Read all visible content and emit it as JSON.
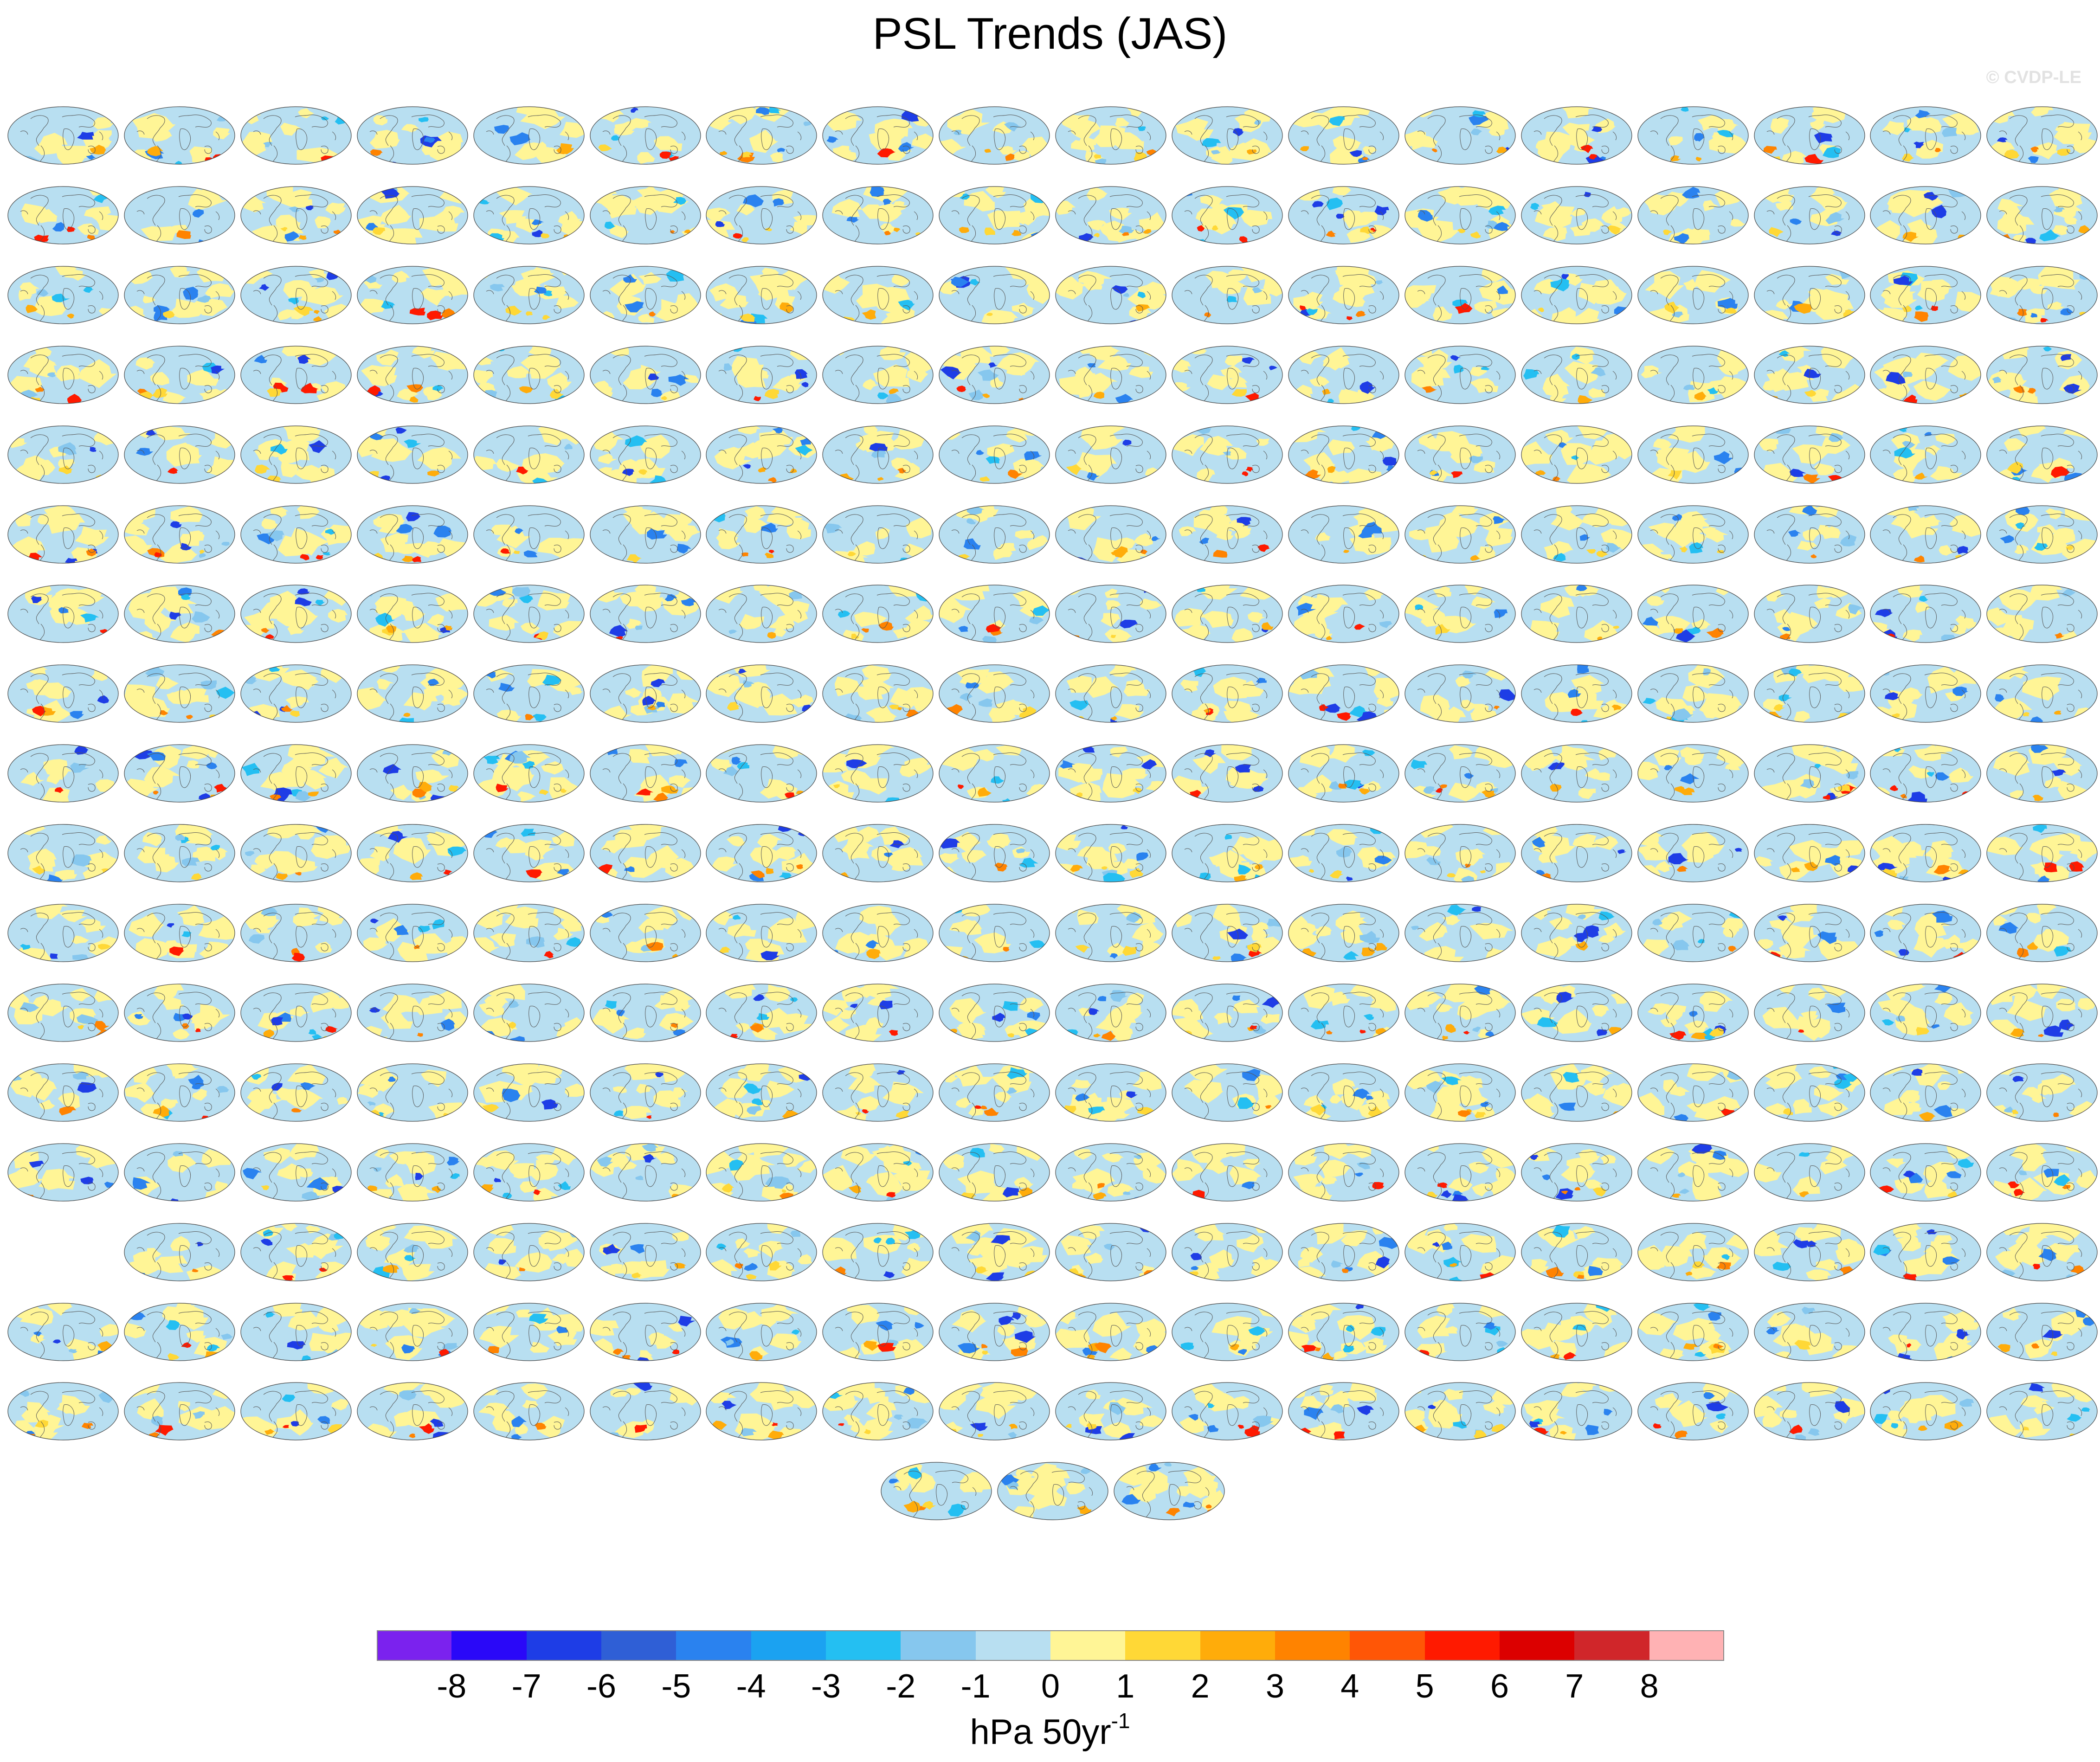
{
  "title": "PSL Trends (JAS)",
  "copyright": "© CVDP-LE",
  "chart_data": {
    "type": "heatmap",
    "title": "PSL Trends (JAS)",
    "panel_grid": {
      "rows": 18,
      "columns": 18,
      "last_row_count": 3,
      "row_15_first_cell_empty": true
    },
    "colorbar": {
      "units_base": "hPa 50yr",
      "units_exponent": "-1",
      "ticks": [
        "-8",
        "-7",
        "-6",
        "-5",
        "-4",
        "-3",
        "-2",
        "-1",
        "0",
        "1",
        "2",
        "3",
        "4",
        "5",
        "6",
        "7",
        "8"
      ],
      "colors": [
        "#7b22ee",
        "#2a08f8",
        "#1e3de6",
        "#2f5fd6",
        "#2a82ef",
        "#1ba2f1",
        "#24bff2",
        "#86c7ee",
        "#b8dff1",
        "#fff596",
        "#ffd836",
        "#ffac0a",
        "#ff8300",
        "#ff5606",
        "#ff1a00",
        "#dc0000",
        "#d0262a",
        "#ffb2b4"
      ]
    }
  }
}
